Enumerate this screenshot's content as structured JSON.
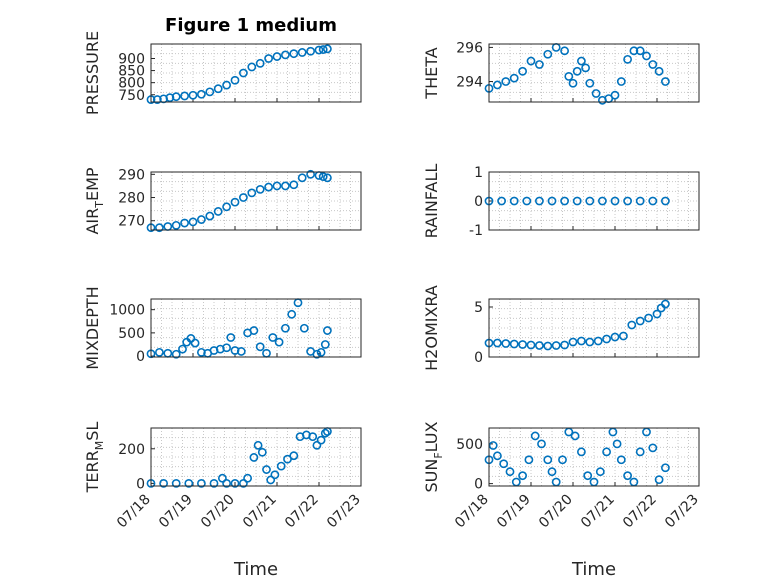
{
  "figure": {
    "title": "Figure 1 medium",
    "marker_color": "#0072BD"
  },
  "chart_data": [
    {
      "type": "scatter",
      "ylabel_main": "PRESSURE",
      "ylabel_sub": "",
      "ylabel_tail": "",
      "ylim": [
        720,
        960
      ],
      "yticks": [
        750,
        800,
        850,
        900
      ],
      "xlim": [
        0,
        5
      ],
      "xticklabels": [],
      "series": [
        {
          "x": [
            0.0,
            0.15,
            0.3,
            0.45,
            0.6,
            0.8,
            1.0,
            1.2,
            1.4,
            1.6,
            1.8,
            2.0,
            2.2,
            2.4,
            2.6,
            2.8,
            3.0,
            3.2,
            3.4,
            3.6,
            3.8,
            4.0,
            4.1,
            4.2
          ],
          "y": [
            730,
            730,
            733,
            738,
            742,
            745,
            748,
            752,
            762,
            775,
            790,
            810,
            840,
            865,
            880,
            900,
            908,
            915,
            920,
            925,
            930,
            935,
            937,
            940
          ]
        }
      ]
    },
    {
      "type": "scatter",
      "ylabel_main": "THETA",
      "ylabel_sub": "",
      "ylabel_tail": "",
      "ylim": [
        292.8,
        296.2
      ],
      "yticks": [
        294,
        296
      ],
      "xlim": [
        0,
        5
      ],
      "xticklabels": [],
      "series": [
        {
          "x": [
            0.0,
            0.2,
            0.4,
            0.6,
            0.8,
            1.0,
            1.2,
            1.4,
            1.6,
            1.8,
            1.9,
            2.0,
            2.1,
            2.2,
            2.3,
            2.4,
            2.55,
            2.7,
            2.85,
            3.0,
            3.15,
            3.3,
            3.45,
            3.6,
            3.75,
            3.9,
            4.05,
            4.2
          ],
          "y": [
            293.6,
            293.8,
            294.0,
            294.2,
            294.6,
            295.2,
            295.0,
            295.6,
            296.0,
            295.8,
            294.3,
            293.9,
            294.6,
            295.2,
            294.8,
            293.9,
            293.3,
            292.9,
            293.0,
            293.2,
            294.0,
            295.3,
            295.8,
            295.8,
            295.5,
            295.0,
            294.6,
            294.0
          ]
        }
      ]
    },
    {
      "type": "scatter",
      "ylabel_main": "AIR",
      "ylabel_sub": "T",
      "ylabel_tail": "EMP",
      "ylim": [
        266,
        291
      ],
      "yticks": [
        270,
        280,
        290
      ],
      "xlim": [
        0,
        5
      ],
      "xticklabels": [],
      "series": [
        {
          "x": [
            0.0,
            0.2,
            0.4,
            0.6,
            0.8,
            1.0,
            1.2,
            1.4,
            1.6,
            1.8,
            2.0,
            2.2,
            2.4,
            2.6,
            2.8,
            3.0,
            3.2,
            3.4,
            3.6,
            3.8,
            4.0,
            4.1,
            4.2
          ],
          "y": [
            267,
            267,
            267.5,
            268,
            269,
            269.5,
            270.5,
            272,
            274,
            276,
            278,
            280,
            282,
            283.5,
            284.5,
            285,
            285,
            285.5,
            288.5,
            290,
            289.5,
            289,
            288.5
          ]
        }
      ]
    },
    {
      "type": "scatter",
      "ylabel_main": "RAINFALL",
      "ylabel_sub": "",
      "ylabel_tail": "",
      "ylim": [
        -1,
        1
      ],
      "yticks": [
        -1,
        0,
        1
      ],
      "xlim": [
        0,
        5
      ],
      "xticklabels": [],
      "series": [
        {
          "x": [
            0.0,
            0.3,
            0.6,
            0.9,
            1.2,
            1.5,
            1.8,
            2.1,
            2.4,
            2.7,
            3.0,
            3.3,
            3.6,
            3.9,
            4.2
          ],
          "y": [
            0,
            0,
            0,
            0,
            0,
            0,
            0,
            0,
            0,
            0,
            0,
            0,
            0,
            0,
            0
          ]
        }
      ]
    },
    {
      "type": "scatter",
      "ylabel_main": "MIXDEPTH",
      "ylabel_sub": "",
      "ylabel_tail": "",
      "ylim": [
        -20,
        1230
      ],
      "yticks": [
        0,
        500,
        1000
      ],
      "xlim": [
        0,
        5
      ],
      "xticklabels": [],
      "series": [
        {
          "x": [
            0.0,
            0.2,
            0.4,
            0.6,
            0.75,
            0.85,
            0.95,
            1.05,
            1.2,
            1.35,
            1.5,
            1.65,
            1.8,
            1.9,
            2.0,
            2.15,
            2.3,
            2.45,
            2.6,
            2.75,
            2.9,
            3.05,
            3.2,
            3.35,
            3.5,
            3.65,
            3.8,
            3.95,
            4.05,
            4.15,
            4.2
          ],
          "y": [
            50,
            80,
            60,
            40,
            150,
            300,
            380,
            280,
            80,
            60,
            120,
            150,
            180,
            400,
            120,
            100,
            500,
            550,
            200,
            60,
            400,
            300,
            600,
            900,
            1150,
            600,
            100,
            40,
            80,
            250,
            550
          ]
        }
      ]
    },
    {
      "type": "scatter",
      "ylabel_main": "H2OMIXRA",
      "ylabel_sub": "",
      "ylabel_tail": "",
      "ylim": [
        0,
        5.8
      ],
      "yticks": [
        0,
        5
      ],
      "xlim": [
        0,
        5
      ],
      "xticklabels": [],
      "series": [
        {
          "x": [
            0.0,
            0.2,
            0.4,
            0.6,
            0.8,
            1.0,
            1.2,
            1.4,
            1.6,
            1.8,
            2.0,
            2.2,
            2.4,
            2.6,
            2.8,
            3.0,
            3.2,
            3.4,
            3.6,
            3.8,
            4.0,
            4.1,
            4.2
          ],
          "y": [
            1.4,
            1.4,
            1.35,
            1.3,
            1.25,
            1.2,
            1.15,
            1.1,
            1.15,
            1.2,
            1.5,
            1.6,
            1.5,
            1.6,
            1.8,
            2.0,
            2.1,
            3.2,
            3.6,
            3.9,
            4.3,
            4.9,
            5.3
          ]
        }
      ]
    },
    {
      "type": "scatter",
      "ylabel_main": "TERR",
      "ylabel_sub": "M",
      "ylabel_tail": "SL",
      "ylim": [
        -15,
        320
      ],
      "yticks": [
        0,
        200
      ],
      "xlim": [
        0,
        5
      ],
      "xticklabels": [
        "07/18",
        "07/19",
        "07/20",
        "07/21",
        "07/22",
        "07/23"
      ],
      "xlabel": "Time",
      "series": [
        {
          "x": [
            0.0,
            0.3,
            0.6,
            0.9,
            1.2,
            1.5,
            1.7,
            1.8,
            2.0,
            2.2,
            2.3,
            2.45,
            2.55,
            2.65,
            2.75,
            2.85,
            2.95,
            3.1,
            3.25,
            3.4,
            3.55,
            3.7,
            3.85,
            3.95,
            4.05,
            4.15,
            4.2
          ],
          "y": [
            0,
            0,
            0,
            0,
            0,
            0,
            30,
            0,
            0,
            0,
            30,
            150,
            220,
            180,
            80,
            20,
            50,
            100,
            140,
            160,
            270,
            280,
            270,
            220,
            250,
            290,
            300
          ]
        }
      ]
    },
    {
      "type": "scatter",
      "ylabel_main": "SUN",
      "ylabel_sub": "F",
      "ylabel_tail": "LUX",
      "ylim": [
        -30,
        700
      ],
      "yticks": [
        0,
        500
      ],
      "xlim": [
        0,
        5
      ],
      "xticklabels": [
        "07/18",
        "07/19",
        "07/20",
        "07/21",
        "07/22",
        "07/23"
      ],
      "xlabel": "Time",
      "series": [
        {
          "x": [
            0.0,
            0.1,
            0.2,
            0.35,
            0.5,
            0.65,
            0.8,
            0.95,
            1.1,
            1.25,
            1.4,
            1.5,
            1.6,
            1.75,
            1.9,
            2.05,
            2.2,
            2.35,
            2.5,
            2.65,
            2.8,
            2.95,
            3.05,
            3.15,
            3.3,
            3.45,
            3.6,
            3.75,
            3.9,
            4.05,
            4.2
          ],
          "y": [
            300,
            480,
            350,
            250,
            150,
            20,
            100,
            300,
            600,
            500,
            300,
            150,
            20,
            300,
            650,
            600,
            400,
            100,
            20,
            150,
            400,
            650,
            500,
            300,
            100,
            20,
            400,
            650,
            450,
            50,
            200
          ]
        }
      ]
    }
  ]
}
